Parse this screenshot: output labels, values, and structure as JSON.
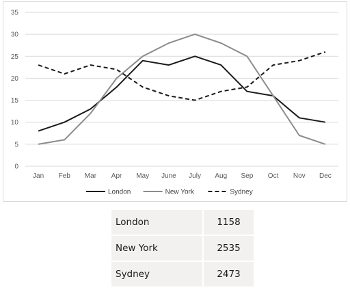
{
  "chart_data": {
    "type": "line",
    "categories": [
      "Jan",
      "Feb",
      "Mar",
      "Apr",
      "May",
      "June",
      "July",
      "Aug",
      "Sep",
      "Oct",
      "Nov",
      "Dec"
    ],
    "ylim": [
      0,
      35
    ],
    "yticks": [
      0,
      5,
      10,
      15,
      20,
      25,
      30,
      35
    ],
    "grid": true,
    "legend_position": "bottom",
    "series": [
      {
        "name": "London",
        "color": "#1a1a1a",
        "dash": "solid",
        "values": [
          8,
          10,
          13,
          18,
          24,
          23,
          25,
          23,
          17,
          16,
          11,
          10
        ]
      },
      {
        "name": "New York",
        "color": "#8c8c8c",
        "dash": "solid",
        "values": [
          5,
          6,
          12,
          20,
          25,
          28,
          30,
          28,
          25,
          16,
          7,
          5
        ]
      },
      {
        "name": "Sydney",
        "color": "#1a1a1a",
        "dash": "dashed",
        "values": [
          23,
          21,
          23,
          22,
          18,
          16,
          15,
          17,
          18,
          23,
          24,
          26
        ]
      }
    ]
  },
  "table": {
    "rows": [
      {
        "city": "London",
        "value": "1158"
      },
      {
        "city": "New York",
        "value": "2535"
      },
      {
        "city": "Sydney",
        "value": "2473"
      }
    ]
  }
}
